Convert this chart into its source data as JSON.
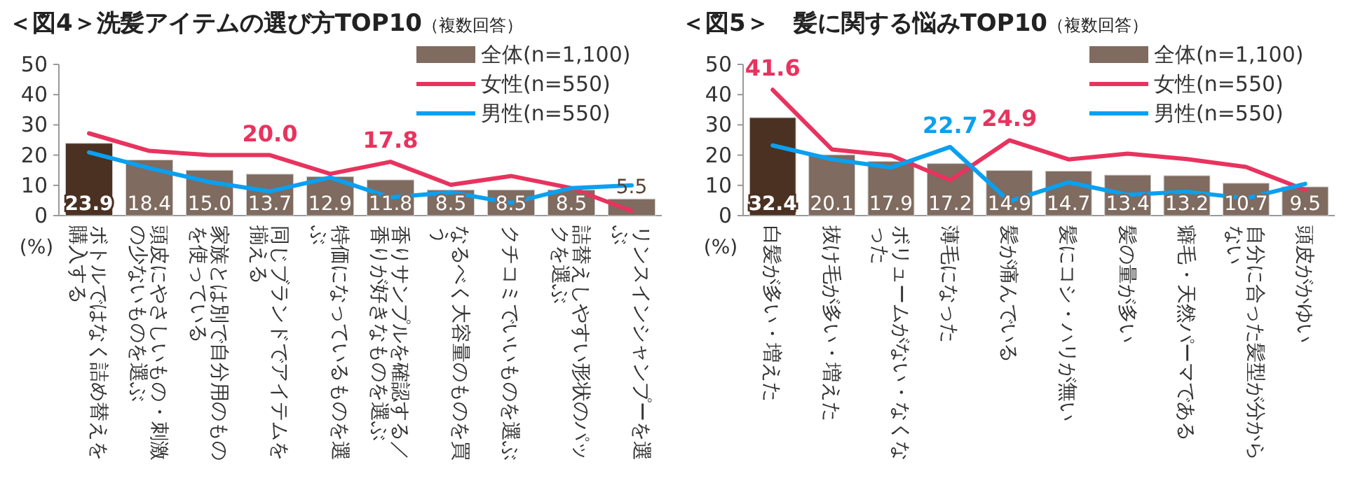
{
  "chart_data": [
    {
      "type": "bar",
      "title": "＜図4＞洗髪アイテムの選び方TOP10",
      "subtitle": "（複数回答）",
      "ylabel": "(%)",
      "ylim": [
        0,
        50
      ],
      "yticks": [
        0,
        10,
        20,
        30,
        40,
        50
      ],
      "legend": "top right",
      "grid": false,
      "categories": [
        "ボトルではなく詰め替えを購入する",
        "頭皮にやさしいもの・刺激の少ないものを選ぶ",
        "家族とは別で自分用のものを使っている",
        "同じブランドでアイテムを揃える",
        "特価になっているものを選ぶ",
        "香りサンプルを確認する／香りが好きなものを選ぶ",
        "なるべく大容量のものを買う",
        "クチコミでいいものを選ぶ",
        "詰替えしやすい形状のパックを選ぶ",
        "リンスインシャンプーを選ぶ"
      ],
      "series": [
        {
          "name": "全体(n=1,100)",
          "type": "bar",
          "colors": [
            "#4a3122",
            "#7f6b5f",
            "#7f6b5f",
            "#7f6b5f",
            "#7f6b5f",
            "#7f6b5f",
            "#7f6b5f",
            "#7f6b5f",
            "#7f6b5f",
            "#7f6b5f"
          ],
          "values": [
            23.9,
            18.4,
            15.0,
            13.7,
            12.9,
            11.8,
            8.5,
            8.5,
            8.5,
            5.5
          ],
          "value_labels": [
            "23.9",
            "18.4",
            "15.0",
            "13.7",
            "12.9",
            "11.8",
            "8.5",
            "8.5",
            "8.5",
            "5.5"
          ]
        },
        {
          "name": "女性(n=550)",
          "type": "line",
          "color": "#e8335e",
          "values": [
            27.2,
            21.4,
            20.0,
            20.0,
            13.8,
            17.8,
            10.2,
            13.1,
            9.1,
            1.5
          ],
          "value_labels": [
            null,
            null,
            null,
            "20.0",
            null,
            "17.8",
            null,
            null,
            null,
            null
          ]
        },
        {
          "name": "男性(n=550)",
          "type": "line",
          "color": "#0aa0f0",
          "values": [
            20.9,
            15.7,
            11.1,
            8.0,
            12.6,
            6.0,
            7.7,
            4.2,
            9.1,
            10.0
          ]
        }
      ]
    },
    {
      "type": "bar",
      "title": "＜図5＞　髪に関する悩みTOP10",
      "subtitle": "（複数回答）",
      "ylabel": "(%)",
      "ylim": [
        0,
        50
      ],
      "yticks": [
        0,
        10,
        20,
        30,
        40,
        50
      ],
      "legend": "top right",
      "grid": false,
      "categories": [
        "白髪が多い・増えた",
        "抜け毛が多い・増えた",
        "ボリュームがない・なくなった",
        "薄毛になった",
        "髪が痛んでいる",
        "髪にコシ・ハリが無い",
        "髪の量が多い",
        "癖毛・天然パーマである",
        "自分に合った髪型が分からない",
        "頭皮がかゆい"
      ],
      "series": [
        {
          "name": "全体(n=1,100)",
          "type": "bar",
          "colors": [
            "#4a3122",
            "#7f6b5f",
            "#7f6b5f",
            "#7f6b5f",
            "#7f6b5f",
            "#7f6b5f",
            "#7f6b5f",
            "#7f6b5f",
            "#7f6b5f",
            "#7f6b5f"
          ],
          "values": [
            32.4,
            20.1,
            17.9,
            17.2,
            14.9,
            14.7,
            13.4,
            13.2,
            10.7,
            9.5
          ],
          "data_labels": true
        },
        {
          "name": "女性(n=550)",
          "type": "line",
          "color": "#e8335e",
          "values": [
            41.6,
            21.9,
            19.9,
            11.7,
            24.9,
            18.6,
            20.5,
            18.7,
            16.1,
            8.5
          ],
          "value_labels": [
            "41.6",
            null,
            null,
            null,
            "24.9",
            null,
            null,
            null,
            null,
            null
          ]
        },
        {
          "name": "男性(n=550)",
          "type": "line",
          "color": "#0aa0f0",
          "values": [
            23.2,
            18.6,
            15.9,
            22.7,
            4.7,
            11.0,
            6.9,
            7.9,
            5.7,
            10.5
          ],
          "value_labels": [
            null,
            null,
            null,
            "22.7",
            null,
            null,
            null,
            null,
            null,
            null
          ]
        }
      ]
    }
  ]
}
